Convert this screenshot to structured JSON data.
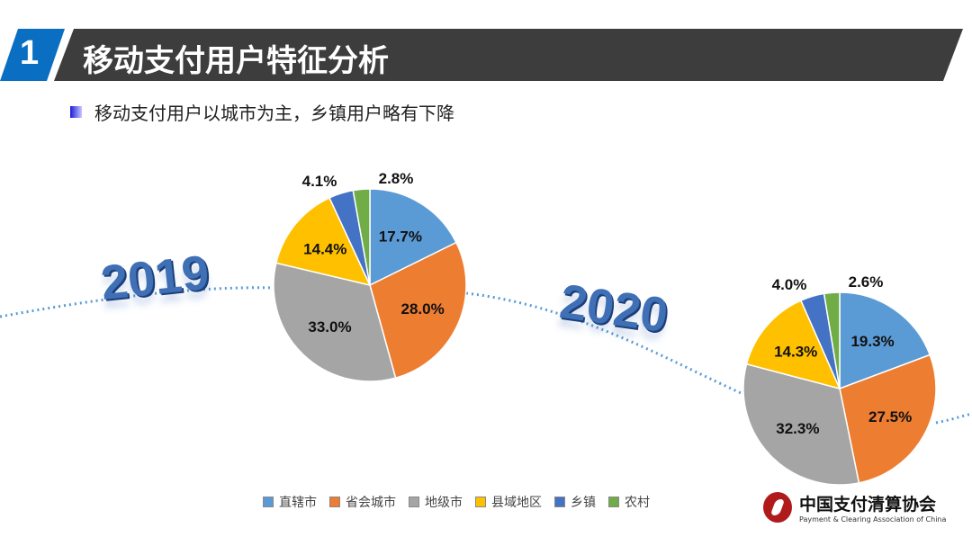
{
  "header": {
    "number": "1",
    "title": "移动支付用户特征分析"
  },
  "subtitle": "移动支付用户以城市为主，乡镇用户略有下降",
  "chart_data": [
    {
      "type": "pie",
      "title": "2019",
      "categories": [
        "直辖市",
        "省会城市",
        "地级市",
        "县域地区",
        "乡镇",
        "农村"
      ],
      "values": [
        17.7,
        28.0,
        33.0,
        14.4,
        4.1,
        2.8
      ],
      "labels": [
        "17.7%",
        "28.0%",
        "33.0%",
        "14.4%",
        "4.1%",
        "2.8%"
      ]
    },
    {
      "type": "pie",
      "title": "2020",
      "categories": [
        "直辖市",
        "省会城市",
        "地级市",
        "县域地区",
        "乡镇",
        "农村"
      ],
      "values": [
        19.3,
        27.5,
        32.3,
        14.3,
        4.0,
        2.6
      ],
      "labels": [
        "19.3%",
        "27.5%",
        "32.3%",
        "14.3%",
        "4.0%",
        "2.6%"
      ]
    }
  ],
  "colors": [
    "#5b9bd5",
    "#ed7d31",
    "#a5a5a5",
    "#ffc000",
    "#4472c4",
    "#70ad47"
  ],
  "legend": [
    "直辖市",
    "省会城市",
    "地级市",
    "县域地区",
    "乡镇",
    "农村"
  ],
  "logo": {
    "name": "中国支付清算协会",
    "english": "Payment & Clearing Association of China"
  }
}
